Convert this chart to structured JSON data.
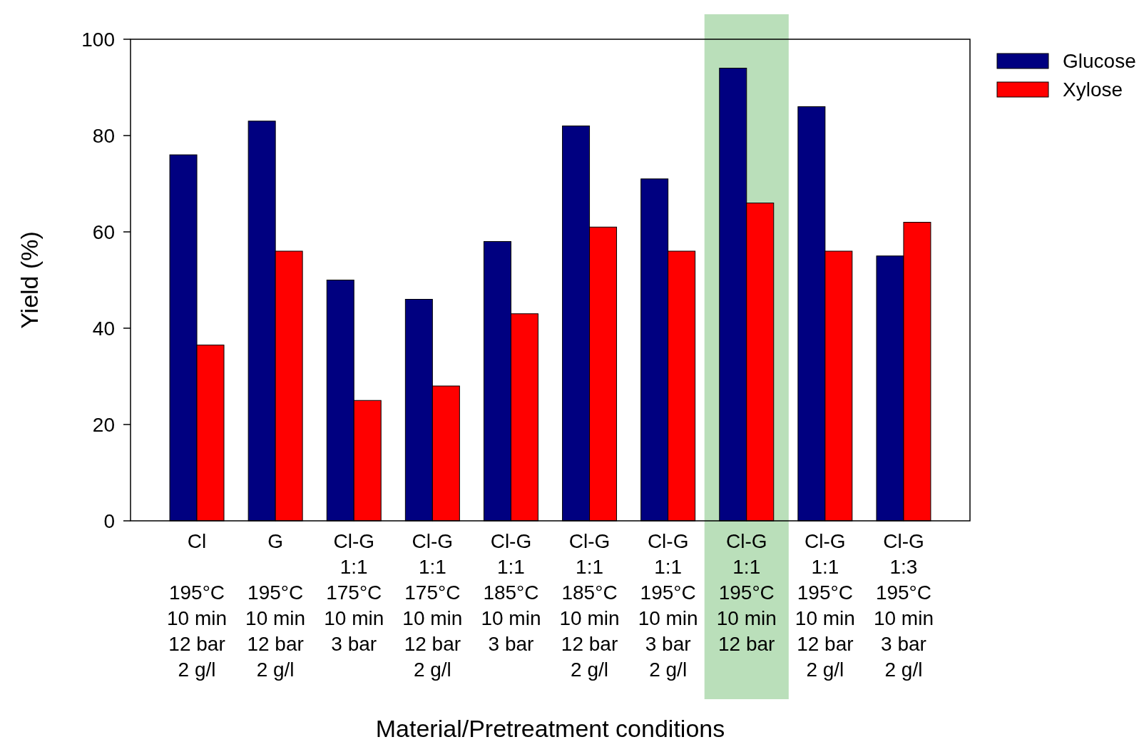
{
  "chart_data": {
    "type": "bar",
    "xlabel": "Material/Pretreatment conditions",
    "ylabel": "Yield (%)",
    "categories": [
      "Cl\n\n195°C\n10 min\n12 bar\n2 g/l",
      "G\n\n195°C\n10 min\n12 bar\n2 g/l",
      "Cl-G\n1:1\n175°C\n10 min\n3 bar",
      "Cl-G\n1:1\n175°C\n10 min\n12 bar\n2 g/l",
      "Cl-G\n1:1\n185°C\n10 min\n3 bar",
      "Cl-G\n1:1\n185°C\n10 min\n12 bar\n2 g/l",
      "Cl-G\n1:1\n195°C\n10 min\n3 bar\n2 g/l",
      "Cl-G\n1:1\n195°C\n10 min\n12 bar",
      "Cl-G\n1:1\n195°C\n10 min\n12 bar\n2 g/l",
      "Cl-G\n1:3\n195°C\n10 min\n3 bar\n2 g/l"
    ],
    "series": [
      {
        "name": "Glucose",
        "color": "#000080",
        "values": [
          76,
          83,
          50,
          46,
          58,
          82,
          71,
          94,
          86,
          55
        ]
      },
      {
        "name": "Xylose",
        "color": "#ff0000",
        "values": [
          36.5,
          56,
          25,
          28,
          43,
          61,
          56,
          66,
          56,
          62
        ]
      }
    ],
    "ylim": [
      0,
      100
    ],
    "yticks": [
      0,
      20,
      40,
      60,
      80,
      100
    ],
    "grid": false,
    "legend": "top right",
    "bands": [
      {
        "axis": "x",
        "from": "Cl-G\n1:1\n195°C\n10 min\n12 bar",
        "to": "Cl-G\n1:1\n195°C\n10 min\n12 bar",
        "color": "#a3d4a3"
      }
    ]
  }
}
